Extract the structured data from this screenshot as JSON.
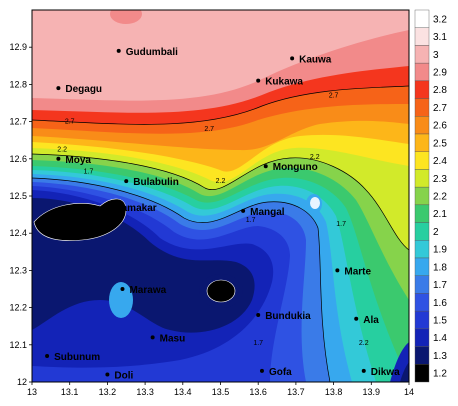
{
  "map": {
    "x_range": [
      13,
      14
    ],
    "y_range": [
      12,
      13
    ],
    "x_ticks": [
      "13",
      "13.1",
      "13.2",
      "13.3",
      "13.4",
      "13.5",
      "13.6",
      "13.7",
      "13.8",
      "13.9",
      "14"
    ],
    "y_ticks": [
      "12",
      "12.1",
      "12.2",
      "12.3",
      "12.4",
      "12.5",
      "12.6",
      "12.7",
      "12.8",
      "12.9"
    ],
    "towns": [
      {
        "name": "Gudumbali",
        "lon": 13.23,
        "lat": 12.89
      },
      {
        "name": "Kauwa",
        "lon": 13.69,
        "lat": 12.87
      },
      {
        "name": "Degagu",
        "lon": 13.07,
        "lat": 12.79
      },
      {
        "name": "Kukawa",
        "lon": 13.6,
        "lat": 12.81
      },
      {
        "name": "Moya",
        "lon": 13.07,
        "lat": 12.6
      },
      {
        "name": "Monguno",
        "lon": 13.62,
        "lat": 12.58
      },
      {
        "name": "Bulabulin",
        "lon": 13.25,
        "lat": 12.54
      },
      {
        "name": "Damakar",
        "lon": 13.2,
        "lat": 12.47
      },
      {
        "name": "Mangal",
        "lon": 13.56,
        "lat": 12.46
      },
      {
        "name": "Marte",
        "lon": 13.81,
        "lat": 12.3
      },
      {
        "name": "Marawa",
        "lon": 13.24,
        "lat": 12.25
      },
      {
        "name": "Bundukia",
        "lon": 13.6,
        "lat": 12.18
      },
      {
        "name": "Ala",
        "lon": 13.86,
        "lat": 12.17
      },
      {
        "name": "Masu",
        "lon": 13.32,
        "lat": 12.12
      },
      {
        "name": "Subunum",
        "lon": 13.04,
        "lat": 12.07
      },
      {
        "name": "Gofa",
        "lon": 13.61,
        "lat": 12.03
      },
      {
        "name": "Dikwa",
        "lon": 13.88,
        "lat": 12.03
      },
      {
        "name": "Doli",
        "lon": 13.2,
        "lat": 12.02
      }
    ],
    "contour_labels": [
      {
        "text": "2.7",
        "lon": 13.1,
        "lat": 12.695
      },
      {
        "text": "2.7",
        "lon": 13.47,
        "lat": 12.675
      },
      {
        "text": "2.7",
        "lon": 13.8,
        "lat": 12.765
      },
      {
        "text": "2.2",
        "lon": 13.08,
        "lat": 12.62
      },
      {
        "text": "2.2",
        "lon": 13.5,
        "lat": 12.535
      },
      {
        "text": "2.2",
        "lon": 13.75,
        "lat": 12.6
      },
      {
        "text": "1.7",
        "lon": 13.15,
        "lat": 12.56
      },
      {
        "text": "1.7",
        "lon": 13.58,
        "lat": 12.43
      },
      {
        "text": "1.7",
        "lon": 13.82,
        "lat": 12.42
      },
      {
        "text": "1.7",
        "lon": 13.6,
        "lat": 12.1
      },
      {
        "text": "2.2",
        "lon": 13.88,
        "lat": 12.1
      }
    ]
  },
  "legend": {
    "values": [
      "3.2",
      "3.1",
      "3",
      "2.9",
      "2.8",
      "2.7",
      "2.6",
      "2.5",
      "2.4",
      "2.3",
      "2.2",
      "2.1",
      "2",
      "1.9",
      "1.8",
      "1.7",
      "1.6",
      "1.5",
      "1.4",
      "1.3",
      "1.2"
    ],
    "colors": [
      "#ffffff",
      "#fbe2e2",
      "#f6b3b3",
      "#f28a8a",
      "#f4361e",
      "#f66318",
      "#f98c18",
      "#fdb619",
      "#fde521",
      "#d2ea2a",
      "#86d34b",
      "#3bc96e",
      "#27cfa0",
      "#33c9d8",
      "#37a8ee",
      "#3a7be8",
      "#2f52e3",
      "#2239d4",
      "#1323b7",
      "#0a1770",
      "#000000"
    ]
  }
}
